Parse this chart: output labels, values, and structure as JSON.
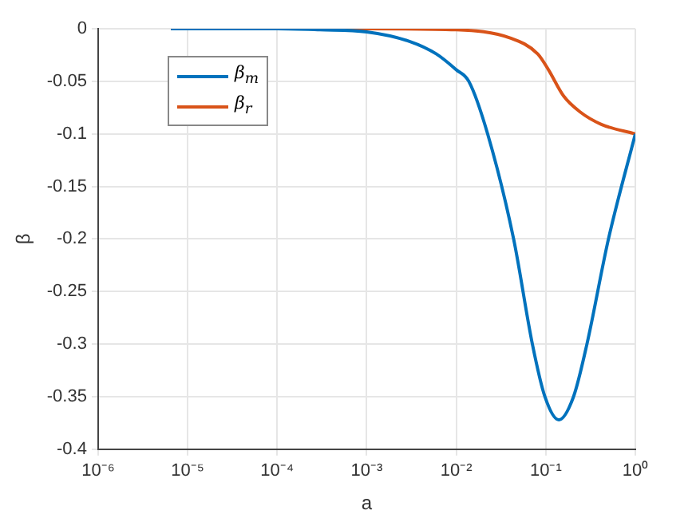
{
  "chart_data": {
    "type": "line",
    "xlabel": "a",
    "ylabel": "β",
    "log": "x",
    "xlim": [
      1e-06,
      1
    ],
    "xticks": [
      {
        "value": 1e-06,
        "label": "10⁻⁶"
      },
      {
        "value": 1e-05,
        "label": "10⁻⁵"
      },
      {
        "value": 0.0001,
        "label": "10⁻⁴"
      },
      {
        "value": 0.001,
        "label": "10⁻³"
      },
      {
        "value": 0.01,
        "label": "10⁻²"
      },
      {
        "value": 0.1,
        "label": "10⁻¹"
      },
      {
        "value": 1,
        "label": "10⁰"
      }
    ],
    "ylim": [
      -0.4,
      0
    ],
    "yticks": [
      -0.4,
      -0.35,
      -0.3,
      -0.25,
      -0.2,
      -0.15,
      -0.1,
      -0.05,
      0
    ],
    "grid": true,
    "legend": "top left",
    "marker": "none",
    "line_style": "solid",
    "series": [
      {
        "name": "β$_{m}$",
        "color": "#0072bd",
        "x": [
          6.5e-06,
          1e-05,
          0.0001,
          0.0003,
          0.001,
          0.003,
          0.006,
          0.01,
          0.0138,
          0.0224,
          0.0437,
          0.0708,
          0.0977,
          0.14,
          0.204,
          0.288,
          0.501,
          1
        ],
        "values": [
          0,
          0,
          0,
          -0.001,
          -0.003,
          -0.012,
          -0.024,
          -0.039,
          -0.05,
          -0.1,
          -0.2,
          -0.3,
          -0.35,
          -0.372,
          -0.35,
          -0.3,
          -0.2,
          -0.1
        ]
      },
      {
        "name": "β$_{r}$",
        "color": "#d95319",
        "x": [
          6.5e-06,
          0.0001,
          0.001,
          0.01,
          0.0407,
          0.0813,
          0.107,
          0.158,
          0.24,
          0.417,
          1
        ],
        "values": [
          0,
          0,
          0,
          -0.001,
          -0.009,
          -0.024,
          -0.039,
          -0.064,
          -0.079,
          -0.091,
          -0.1
        ]
      }
    ]
  }
}
